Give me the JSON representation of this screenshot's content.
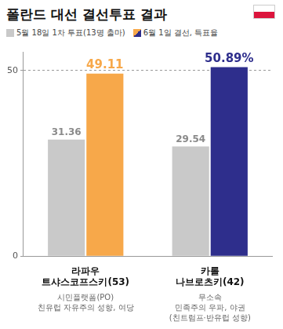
{
  "chart_data": {
    "type": "bar",
    "title": "폴란드 대선 결선투표 결과",
    "categories": [
      [
        "라파우",
        "트샤스코프스키(53)"
      ],
      [
        "카롤",
        "나브로츠키(42)"
      ]
    ],
    "category_notes": [
      [
        "시민플랫폼(PO)",
        "친유럽 자유주의 성향, 여당"
      ],
      [
        "무소속",
        "민족주의 우파, 야권",
        "(친트럼프·반유럽 성향)"
      ]
    ],
    "series": [
      {
        "name": "5월 18일 1차 투표(13명 출마)",
        "color": "#c9c9c9",
        "values": [
          31.36,
          29.54
        ]
      },
      {
        "name": "6월 1일 결선, 득표율",
        "colors": [
          "#f7a84a",
          "#2e2e8c"
        ],
        "values": [
          49.11,
          50.89
        ],
        "value_labels": [
          "49.11",
          "50.89%"
        ]
      }
    ],
    "ylim": [
      0,
      55
    ],
    "yticks": [
      0,
      50
    ],
    "grid": true,
    "legend": "top-left",
    "data_labels": true
  }
}
